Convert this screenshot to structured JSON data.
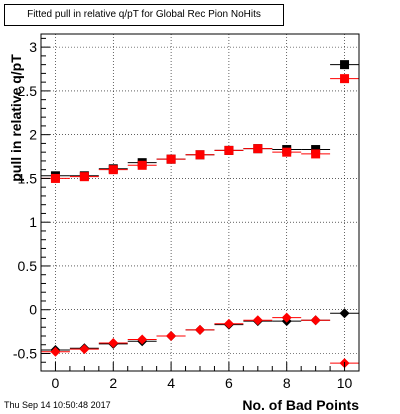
{
  "title": "Fitted pull in relative q/pT for Global Rec Pion NoHits",
  "timestamp": "Thu Sep 14 10:50:48 2017",
  "colors": {
    "black_series": "#000000",
    "red_series": "#ff0000"
  },
  "chart_data": {
    "type": "scatter",
    "title": "Fitted pull in relative q/pT for Global Rec Pion NoHits",
    "xlabel": "No. of Bad Points",
    "ylabel": "pull in relative q/pT",
    "xlim": [
      -0.5,
      10.5
    ],
    "ylim": [
      -0.7,
      3.15
    ],
    "x_ticks": [
      0,
      2,
      4,
      6,
      8,
      10
    ],
    "y_ticks": [
      -0.5,
      0,
      0.5,
      1,
      1.5,
      2,
      2.5,
      3
    ],
    "grid": true,
    "markers": [
      "square",
      "diamond"
    ],
    "series": [
      {
        "color": "#000000",
        "marker": "square",
        "x": [
          0,
          1,
          2,
          3,
          4,
          5,
          6,
          7,
          8,
          9,
          10
        ],
        "y": [
          1.53,
          1.53,
          1.61,
          1.68,
          1.72,
          1.77,
          1.82,
          1.84,
          1.83,
          1.83,
          2.8
        ]
      },
      {
        "color": "#ff0000",
        "marker": "square",
        "x": [
          0,
          1,
          2,
          3,
          4,
          5,
          6,
          7,
          8,
          9,
          10
        ],
        "y": [
          1.5,
          1.52,
          1.6,
          1.65,
          1.72,
          1.77,
          1.82,
          1.84,
          1.8,
          1.78,
          2.64
        ]
      },
      {
        "color": "#000000",
        "marker": "diamond",
        "x": [
          0,
          1,
          2,
          3,
          4,
          5,
          6,
          7,
          8,
          9,
          10
        ],
        "y": [
          -0.46,
          -0.44,
          -0.39,
          -0.36,
          -0.3,
          -0.23,
          -0.17,
          -0.13,
          -0.13,
          -0.12,
          -0.04
        ]
      },
      {
        "color": "#ff0000",
        "marker": "diamond",
        "x": [
          0,
          1,
          2,
          3,
          4,
          5,
          6,
          7,
          8,
          9,
          10
        ],
        "y": [
          -0.48,
          -0.45,
          -0.38,
          -0.34,
          -0.3,
          -0.23,
          -0.16,
          -0.12,
          -0.09,
          -0.12,
          -0.61
        ]
      }
    ]
  }
}
